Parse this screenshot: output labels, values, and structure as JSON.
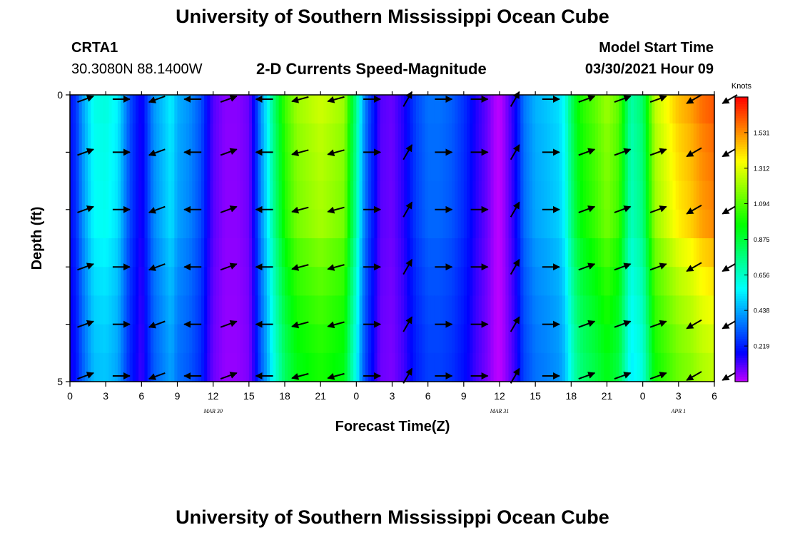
{
  "page": {
    "title_top": "University of Southern Mississippi Ocean Cube",
    "title_bottom": "University of Southern Mississippi Ocean Cube",
    "station": "CRTA1",
    "coordinates": "30.3080N  88.1400W",
    "plot_title": "2-D Currents Speed-Magnitude",
    "model_label": "Model Start Time",
    "model_time": "03/30/2021 Hour 09"
  },
  "chart_data": {
    "type": "heatmap",
    "title": "2-D Currents Speed-Magnitude",
    "xlabel": "Forecast Time(Z)",
    "ylabel": "Depth (ft)",
    "x_range_hours": [
      0,
      54
    ],
    "ylim": [
      0,
      5
    ],
    "x_ticks": [
      "0",
      "3",
      "6",
      "9",
      "12",
      "15",
      "18",
      "21",
      "0",
      "3",
      "6",
      "9",
      "12",
      "15",
      "18",
      "21",
      "0",
      "3",
      "6"
    ],
    "y_ticks": [
      "0",
      "5"
    ],
    "date_labels": [
      {
        "hour": 12,
        "label": "MAR  30"
      },
      {
        "hour": 36,
        "label": "MAR  31"
      },
      {
        "hour": 51,
        "label": "APR  1"
      }
    ],
    "colorbar": {
      "unit": "Knots",
      "range": [
        0,
        1.75
      ],
      "ticks": [
        "1.531",
        "1.312",
        "1.094",
        "0.875",
        "0.656",
        "0.438",
        "0.219"
      ]
    },
    "speed_profile": {
      "hours": [
        0,
        0.5,
        1,
        1.5,
        2,
        3,
        4,
        5,
        6,
        7,
        8,
        8.5,
        9,
        10,
        11,
        11.5,
        12,
        13,
        14,
        15,
        15.5,
        16,
        16.5,
        17,
        17.5,
        18,
        19,
        21,
        23,
        23.5,
        24,
        24.5,
        25,
        26,
        27,
        28,
        29,
        30,
        31,
        32,
        33,
        34,
        35,
        35.6,
        36,
        36.4,
        37,
        37.5,
        38,
        39,
        40,
        41,
        41.5,
        42,
        42.5,
        43,
        44,
        45,
        46,
        46.5,
        47,
        48,
        49,
        50,
        51,
        52,
        53,
        54
      ],
      "knots_at_surface": [
        0.2,
        0.25,
        0.4,
        0.5,
        0.6,
        0.62,
        0.55,
        0.3,
        0.15,
        0.4,
        0.5,
        0.55,
        0.45,
        0.4,
        0.3,
        0.18,
        0.1,
        0.05,
        0.05,
        0.08,
        0.2,
        0.4,
        0.55,
        0.75,
        0.9,
        1.05,
        1.2,
        1.28,
        1.2,
        0.95,
        0.75,
        0.45,
        0.3,
        0.1,
        0.08,
        0.15,
        0.28,
        0.35,
        0.35,
        0.32,
        0.25,
        0.15,
        0.08,
        0.02,
        0.0,
        0.04,
        0.12,
        0.2,
        0.35,
        0.45,
        0.48,
        0.52,
        0.6,
        0.8,
        0.95,
        1.02,
        1.1,
        1.2,
        1.1,
        0.9,
        0.7,
        0.8,
        1.25,
        1.35,
        1.45,
        1.5,
        1.58,
        1.62
      ],
      "depth_factor": [
        1.0,
        0.98,
        0.97,
        0.96,
        0.95,
        0.9,
        0.86,
        0.83,
        0.8,
        0.78
      ]
    },
    "arrows": {
      "rows_ft": [
        0,
        1,
        2,
        3,
        4,
        5
      ],
      "hours": [
        0,
        3,
        6,
        9,
        12,
        15,
        18,
        21,
        24,
        27,
        30,
        33,
        36,
        39,
        42,
        45,
        48,
        51,
        54
      ],
      "direction_deg": [
        20,
        0,
        -160,
        180,
        20,
        180,
        -165,
        -165,
        0,
        60,
        0,
        0,
        60,
        0,
        20,
        20,
        20,
        -150,
        -150
      ]
    }
  }
}
